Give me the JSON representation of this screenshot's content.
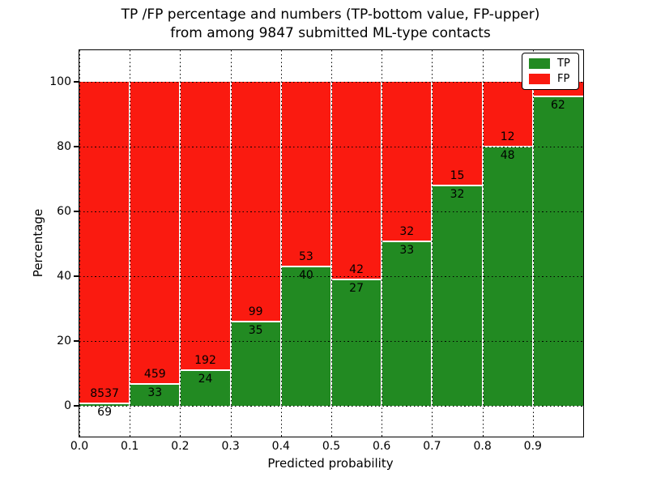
{
  "title_line1": "TP /FP percentage and numbers (TP-bottom value, FP-upper)",
  "title_line2": "from among 9847 submitted ML-type contacts",
  "axes": {
    "xlabel": "Predicted probability",
    "ylabel": "Percentage",
    "yticks": [
      0,
      20,
      40,
      60,
      80,
      100
    ],
    "xticks": [
      "0.0",
      "0.1",
      "0.2",
      "0.3",
      "0.4",
      "0.5",
      "0.6",
      "0.7",
      "0.8",
      "0.9"
    ]
  },
  "legend": {
    "entries": [
      {
        "label": "TP",
        "color": "#228a22"
      },
      {
        "label": "FP",
        "color": "#fa1a10"
      }
    ],
    "position": "upper right"
  },
  "colors": {
    "tp_green": "#228a22",
    "fp_red": "#fa1a10",
    "grid": "#000000",
    "background": "#ffffff"
  },
  "chart_data": {
    "type": "bar",
    "stacked": true,
    "normalized_to": 100,
    "title": "TP /FP percentage and numbers (TP-bottom value, FP-upper) from among 9847 submitted ML-type contacts",
    "xlabel": "Predicted probability",
    "ylabel": "Percentage",
    "x_bin_edges": [
      0.0,
      0.1,
      0.2,
      0.3,
      0.4,
      0.5,
      0.6,
      0.7,
      0.8,
      0.9,
      1.0
    ],
    "grid": true,
    "ytick_range": [
      0,
      100
    ],
    "series": [
      {
        "name": "TP",
        "color": "#228a22",
        "counts": [
          69,
          33,
          24,
          35,
          40,
          27,
          33,
          32,
          48,
          62
        ],
        "pct_of_bin": [
          0.8,
          6.7,
          11.1,
          26.1,
          43.0,
          39.1,
          50.8,
          68.1,
          80.0,
          95.4
        ]
      },
      {
        "name": "FP",
        "color": "#fa1a10",
        "counts": [
          8537,
          459,
          192,
          99,
          53,
          42,
          32,
          15,
          12,
          null
        ],
        "pct_of_bin": [
          99.2,
          93.3,
          88.9,
          73.9,
          57.0,
          60.9,
          49.2,
          31.9,
          20.0,
          4.6
        ]
      }
    ],
    "bar_labels": {
      "fp_upper": [
        "8537",
        "459",
        "192",
        "99",
        "53",
        "42",
        "32",
        "15",
        "12",
        ""
      ],
      "tp_bottom": [
        "69",
        "33",
        "24",
        "35",
        "40",
        "27",
        "33",
        "32",
        "48",
        "62"
      ]
    }
  }
}
